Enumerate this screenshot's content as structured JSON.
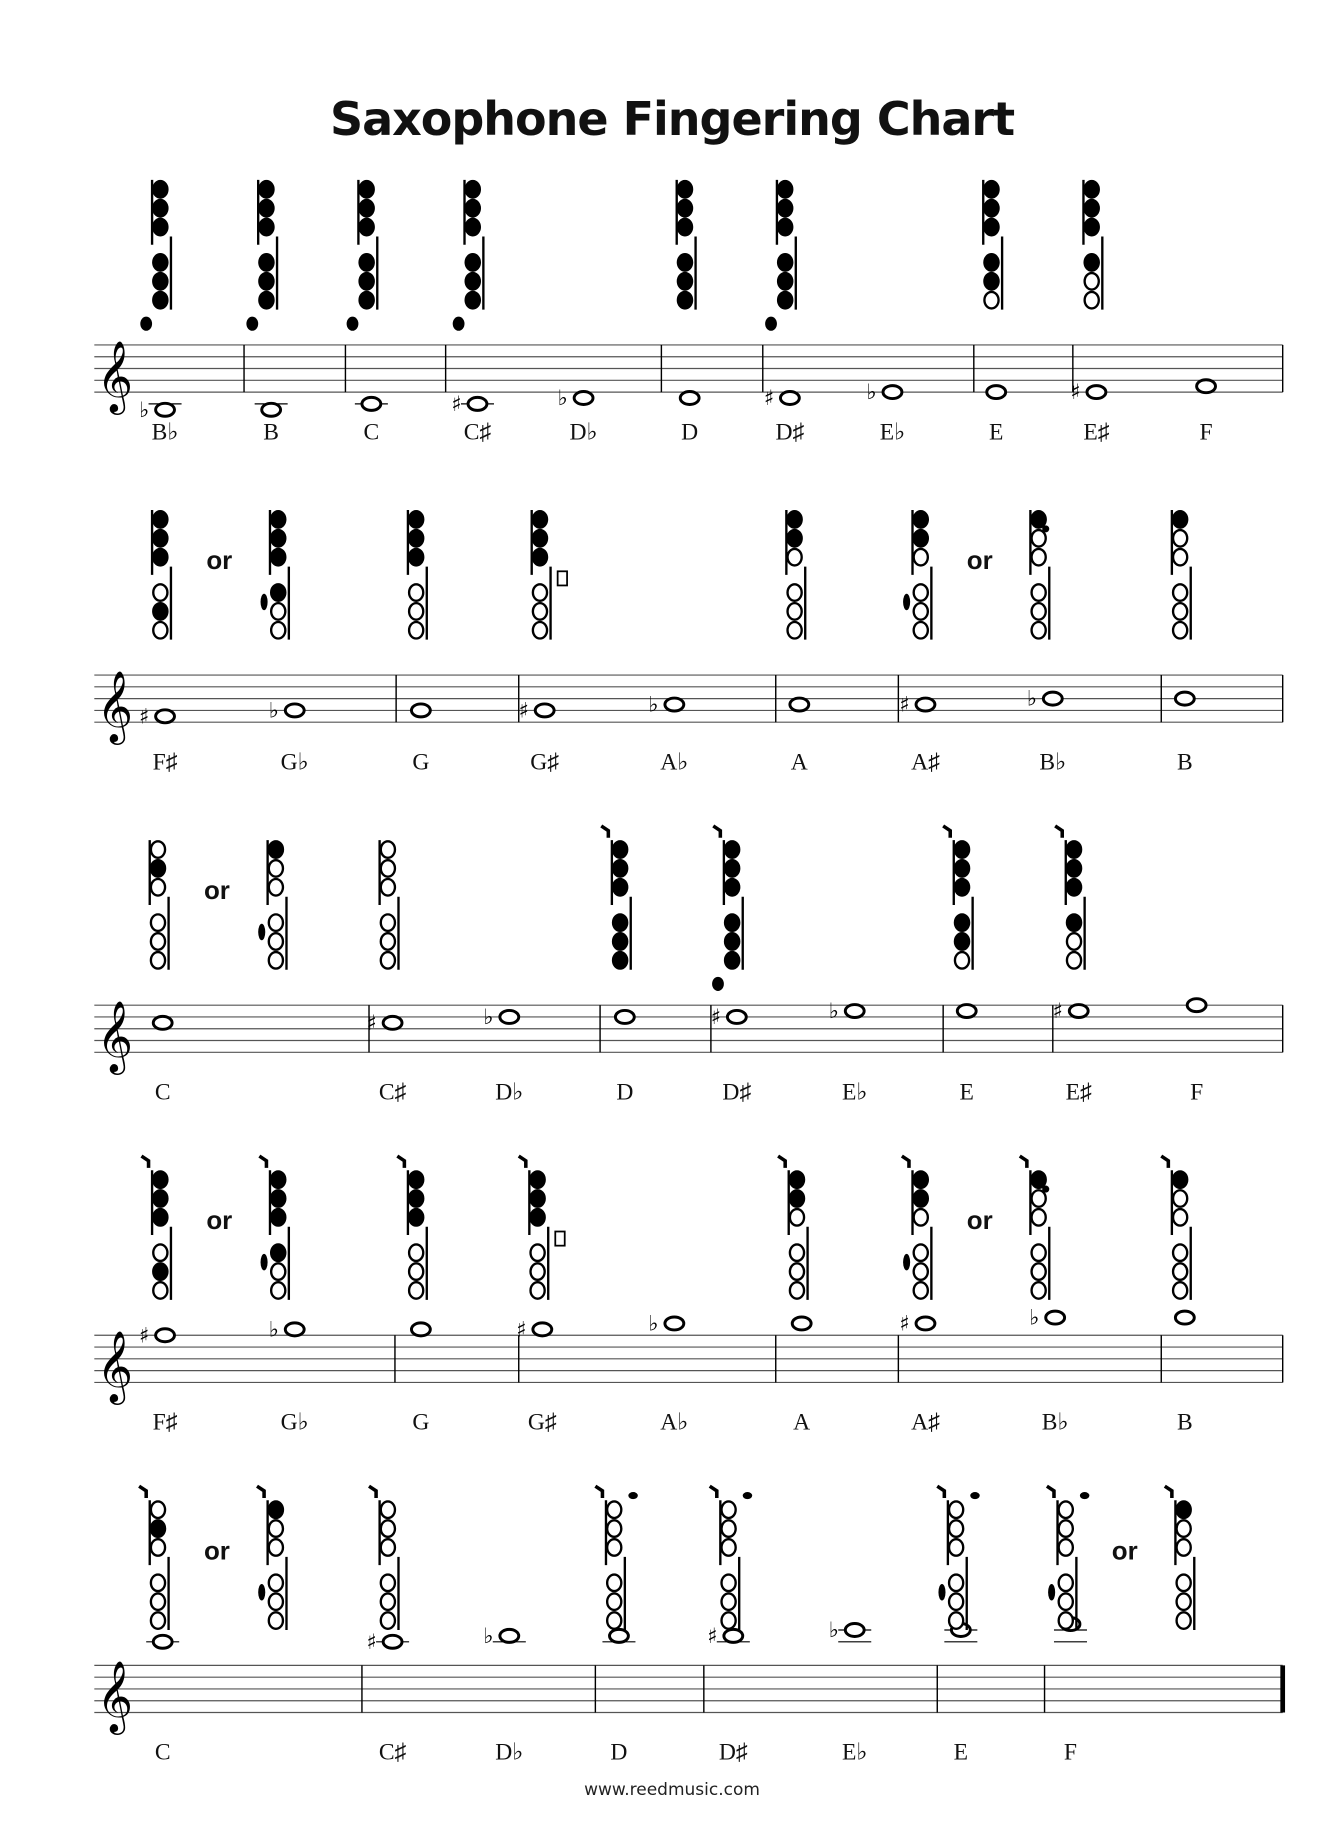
{
  "title": "Saxophone Fingering Chart",
  "footer": "www.reedmusic.com",
  "or_label": "or",
  "rows": [
    {
      "notes": [
        {
          "label": "B♭",
          "pitch": -3,
          "acc": "♭",
          "fingering": [
            "111111L"
          ]
        },
        {
          "label": "B",
          "pitch": -3,
          "acc": "",
          "fingering": [
            "111111L"
          ]
        },
        {
          "label": "C",
          "pitch": -2,
          "acc": "",
          "fingering": [
            "111111L"
          ]
        },
        {
          "label": "C♯",
          "pitch": -2,
          "acc": "♯",
          "fingering": [
            "111111L"
          ]
        },
        {
          "label": "D♭",
          "pitch": -1,
          "acc": "♭",
          "fingering": []
        },
        {
          "label": "D",
          "pitch": -1,
          "acc": "",
          "fingering": [
            "111111"
          ]
        },
        {
          "label": "D♯",
          "pitch": -1,
          "acc": "♯",
          "fingering": [
            "111111L"
          ]
        },
        {
          "label": "E♭",
          "pitch": 0,
          "acc": "♭",
          "fingering": []
        },
        {
          "label": "E",
          "pitch": 0,
          "acc": "",
          "fingering": [
            "111110"
          ]
        },
        {
          "label": "E♯",
          "pitch": 0,
          "acc": "♯",
          "fingering": [
            "111100"
          ]
        },
        {
          "label": "F",
          "pitch": 1,
          "acc": "",
          "fingering": []
        }
      ]
    },
    {
      "notes": [
        {
          "label": "F♯",
          "pitch": 1,
          "acc": "♯",
          "fingering": [
            "111010",
            "111100S"
          ]
        },
        {
          "label": "G♭",
          "pitch": 2,
          "acc": "♭",
          "fingering": []
        },
        {
          "label": "G",
          "pitch": 2,
          "acc": "",
          "fingering": [
            "111000"
          ]
        },
        {
          "label": "G♯",
          "pitch": 2,
          "acc": "♯",
          "fingering": [
            "111000G"
          ]
        },
        {
          "label": "A♭",
          "pitch": 3,
          "acc": "♭",
          "fingering": []
        },
        {
          "label": "A",
          "pitch": 3,
          "acc": "",
          "fingering": [
            "110000"
          ]
        },
        {
          "label": "A♯",
          "pitch": 3,
          "acc": "♯",
          "fingering": [
            "110000S",
            "100000B"
          ]
        },
        {
          "label": "B♭",
          "pitch": 4,
          "acc": "♭",
          "fingering": []
        },
        {
          "label": "B",
          "pitch": 4,
          "acc": "",
          "fingering": [
            "100000"
          ]
        }
      ]
    },
    {
      "notes": [
        {
          "label": "C",
          "pitch": 5,
          "acc": "",
          "fingering": [
            "010000",
            "100000S"
          ]
        },
        {
          "label": "C♯",
          "pitch": 5,
          "acc": "♯",
          "fingering": [
            "000000"
          ]
        },
        {
          "label": "D♭",
          "pitch": 6,
          "acc": "♭",
          "fingering": []
        },
        {
          "label": "D",
          "pitch": 6,
          "acc": "",
          "fingering": [
            "O111111"
          ]
        },
        {
          "label": "D♯",
          "pitch": 6,
          "acc": "♯",
          "fingering": [
            "O111111L"
          ]
        },
        {
          "label": "E♭",
          "pitch": 7,
          "acc": "♭",
          "fingering": []
        },
        {
          "label": "E",
          "pitch": 7,
          "acc": "",
          "fingering": [
            "O111110"
          ]
        },
        {
          "label": "E♯",
          "pitch": 7,
          "acc": "♯",
          "fingering": [
            "O111100"
          ]
        },
        {
          "label": "F",
          "pitch": 8,
          "acc": "",
          "fingering": []
        }
      ]
    },
    {
      "notes": [
        {
          "label": "F♯",
          "pitch": 8,
          "acc": "♯",
          "fingering": [
            "O111010",
            "O111100S"
          ]
        },
        {
          "label": "G♭",
          "pitch": 9,
          "acc": "♭",
          "fingering": []
        },
        {
          "label": "G",
          "pitch": 9,
          "acc": "",
          "fingering": [
            "O111000"
          ]
        },
        {
          "label": "G♯",
          "pitch": 9,
          "acc": "♯",
          "fingering": [
            "O111000G"
          ]
        },
        {
          "label": "A♭",
          "pitch": 10,
          "acc": "♭",
          "fingering": []
        },
        {
          "label": "A",
          "pitch": 10,
          "acc": "",
          "fingering": [
            "O110000"
          ]
        },
        {
          "label": "A♯",
          "pitch": 10,
          "acc": "♯",
          "fingering": [
            "O110000S",
            "O100000B"
          ]
        },
        {
          "label": "B♭",
          "pitch": 11,
          "acc": "♭",
          "fingering": []
        },
        {
          "label": "B",
          "pitch": 11,
          "acc": "",
          "fingering": [
            "O100000"
          ]
        }
      ]
    },
    {
      "notes": [
        {
          "label": "C",
          "pitch": 12,
          "acc": "",
          "fingering": [
            "O010000",
            "O100000S"
          ]
        },
        {
          "label": "C♯",
          "pitch": 12,
          "acc": "♯",
          "fingering": [
            "O000000"
          ]
        },
        {
          "label": "D♭",
          "pitch": 13,
          "acc": "♭",
          "fingering": []
        },
        {
          "label": "D",
          "pitch": 13,
          "acc": "",
          "fingering": [
            "O000000P"
          ]
        },
        {
          "label": "D♯",
          "pitch": 13,
          "acc": "♯",
          "fingering": [
            "O000000P"
          ]
        },
        {
          "label": "E♭",
          "pitch": 14,
          "acc": "♭",
          "fingering": []
        },
        {
          "label": "E",
          "pitch": 14,
          "acc": "",
          "fingering": [
            "O000000PS"
          ]
        },
        {
          "label": "F",
          "pitch": 15,
          "acc": "",
          "fingering": [
            "O000000PS",
            "O100000"
          ]
        }
      ]
    }
  ]
}
